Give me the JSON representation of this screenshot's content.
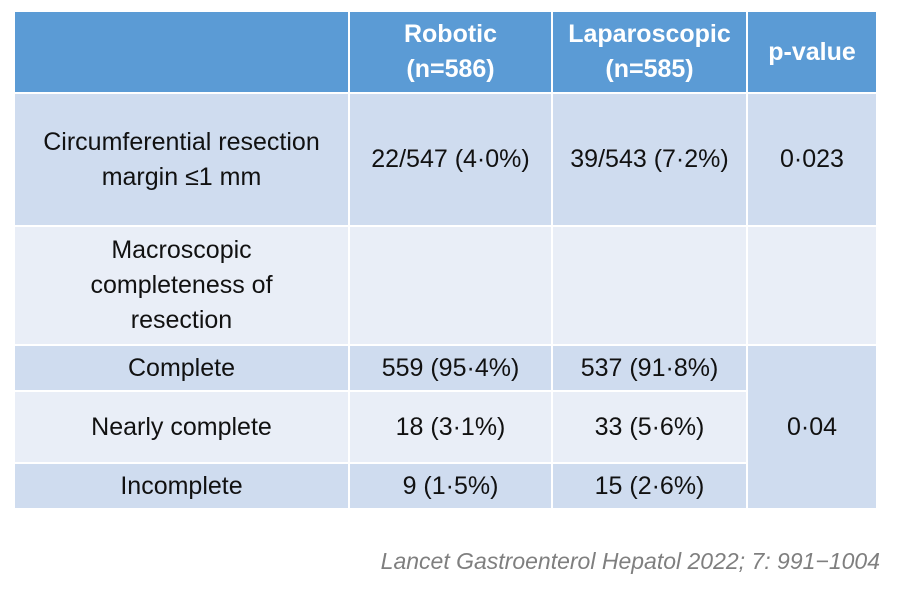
{
  "table": {
    "headers": {
      "label": "",
      "robotic_line1": "Robotic",
      "robotic_line2": "(n=586)",
      "laparoscopic_line1": "Laparoscopic",
      "laparoscopic_line2": "(n=585)",
      "pvalue": "p-value"
    },
    "crm": {
      "label_line1": "Circumferential resection",
      "label_line2": "margin ≤1 mm",
      "robotic": "22/547 (4·0%)",
      "laparoscopic": "39/543 (7·2%)",
      "pvalue": "0·023"
    },
    "macro": {
      "label_line1": "Macroscopic",
      "label_line2": "completeness of",
      "label_line3": "resection"
    },
    "complete": {
      "label": "Complete",
      "robotic": "559 (95·4%)",
      "laparoscopic": "537 (91·8%)"
    },
    "nearly": {
      "label": "Nearly complete",
      "robotic": "18 (3·1%)",
      "laparoscopic": "33 (5·6%)"
    },
    "incomplete": {
      "label": "Incomplete",
      "robotic": "9 (1·5%)",
      "laparoscopic": "15 (2·6%)"
    },
    "macro_pvalue": "0·04"
  },
  "citation": "Lancet Gastroenterol Hepatol 2022; 7: 991−1004",
  "colors": {
    "header": "#5b9bd5",
    "row_dark": "#cfdcef",
    "row_light": "#e9eef7",
    "citation": "#7f7f7f"
  }
}
